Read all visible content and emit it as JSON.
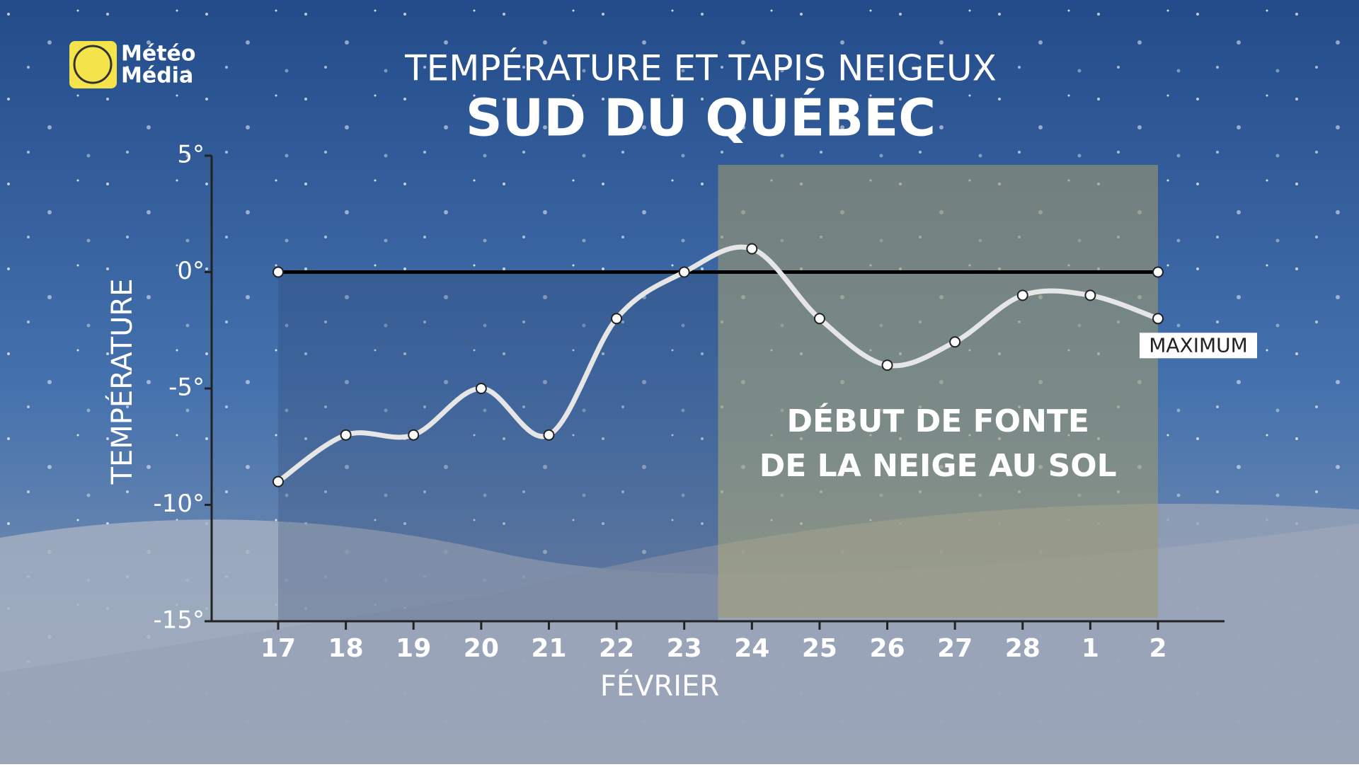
{
  "logo": [
    "Météo",
    "Média"
  ],
  "chart_data": {
    "type": "line",
    "title": "TEMPÉRATURE ET TAPIS NEIGEUX",
    "subtitle": "SUD DU QUÉBEC",
    "y_label": "TEMPÉRATURE",
    "x_label": "FÉVRIER",
    "categories": [
      "17",
      "18",
      "19",
      "20",
      "21",
      "22",
      "23",
      "24",
      "25",
      "26",
      "27",
      "28",
      "1",
      "2"
    ],
    "series": [
      {
        "name": "MAXIMUM",
        "color": "#e6e6e6",
        "values": [
          -9,
          -7,
          -7,
          -5,
          -7,
          -2,
          0,
          1,
          -2,
          -4,
          -3,
          -1,
          -1,
          -2
        ]
      }
    ],
    "reference_line": {
      "value": 0,
      "color": "#000000"
    },
    "highlight": {
      "from": "24",
      "to": "2",
      "color": "#9c9a6e",
      "text": [
        "DÉBUT DE FONTE",
        "DE LA NEIGE AU SOL"
      ]
    },
    "ylim": [
      -15,
      5
    ],
    "yticks": [
      {
        "value": 5,
        "label": "5°"
      },
      {
        "value": 0,
        "label": "0°"
      },
      {
        "value": -5,
        "label": "-5°"
      },
      {
        "value": -10,
        "label": "-10°"
      },
      {
        "value": -15,
        "label": "-15°"
      }
    ]
  }
}
